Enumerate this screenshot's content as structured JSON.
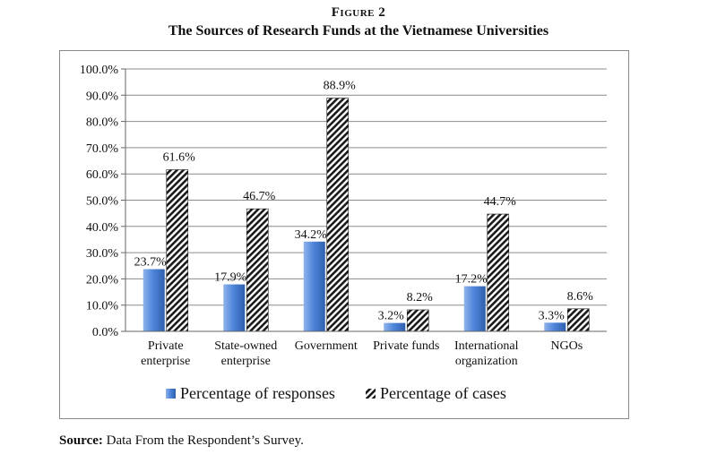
{
  "figure": {
    "label": "Figure 2",
    "title": "The Sources of Research Funds at the Vietnamese Universities",
    "source_label": "Source:",
    "source_text": "Data From the Respondent’s Survey."
  },
  "chart_data": {
    "type": "bar",
    "title": "The Sources of Research Funds at the Vietnamese Universities",
    "xlabel": "",
    "ylabel": "",
    "ylim": [
      0,
      100
    ],
    "yticks": [
      "0.0%",
      "10.0%",
      "20.0%",
      "30.0%",
      "40.0%",
      "50.0%",
      "60.0%",
      "70.0%",
      "80.0%",
      "90.0%",
      "100.0%"
    ],
    "categories": [
      [
        "Private",
        "enterprise"
      ],
      [
        "State-owned",
        "enterprise"
      ],
      [
        "Government"
      ],
      [
        "Private funds"
      ],
      [
        "International",
        "organization"
      ],
      [
        "NGOs"
      ]
    ],
    "series": [
      {
        "name": "Percentage of responses",
        "values": [
          23.7,
          17.9,
          34.2,
          3.2,
          17.2,
          3.3
        ],
        "labels": [
          "23.7%",
          "17.9%",
          "34.2%",
          "3.2%",
          "17.2%",
          "3.3%"
        ],
        "color": "#4a7fd4"
      },
      {
        "name": "Percentage of cases",
        "values": [
          61.6,
          46.7,
          88.9,
          8.2,
          44.7,
          8.6
        ],
        "labels": [
          "61.6%",
          "46.7%",
          "88.9%",
          "8.2%",
          "44.7%",
          "8.6%"
        ],
        "color": "#222222"
      }
    ],
    "grid": true,
    "legend": "bottom"
  }
}
